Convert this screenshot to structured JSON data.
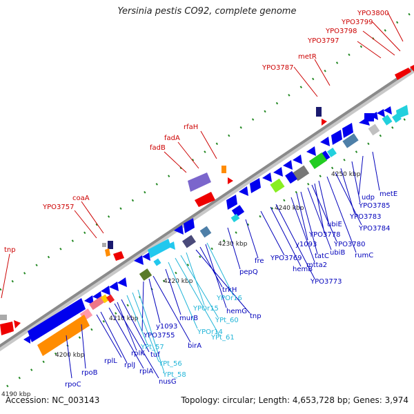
{
  "title": "Yersinia pestis CO92, complete genome",
  "footer": {
    "accession": "Accession: NC_003143",
    "summary": "Topology: circular; Length: 4,653,728 bp; Genes: 3,974"
  },
  "colors": {
    "backbone": "#8a8a8a",
    "red_label": "#cc0000",
    "blue_label": "#0000bb",
    "cyan_label": "#22b5d8",
    "tick": "#228822"
  },
  "kbp_labels": [
    "4190 kbp",
    "4200 kbp",
    "4210 kbp",
    "4220 kbp",
    "4230 kbp",
    "4240 kbp",
    "4250 kbp"
  ],
  "labels_top": [
    "YPO3800",
    "YPO3799",
    "YPO3798",
    "YPO3797",
    "metR",
    "YPO3787",
    "rfaH",
    "fadA",
    "fadB",
    "coaA",
    "YPO3757",
    "tnp"
  ],
  "labels_bottom_blue": [
    "metE",
    "udp",
    "YPO3785",
    "YPO3783",
    "YPO3784",
    "rumC",
    "ubiE",
    "YPO3778",
    "YPO3780",
    "ubiB",
    "y1093",
    "tatC",
    "mtta2",
    "YPO3769",
    "fre",
    "hemB",
    "YPO3773",
    "pepQ",
    "trkH",
    "hemG",
    "tnp",
    "y1093",
    "YPO3755",
    "murB",
    "birA",
    "tuf",
    "rplK",
    "rplA",
    "nusG",
    "rplL",
    "rplJ",
    "rpoB",
    "rpoC"
  ],
  "labels_bottom_cyan": [
    "YPOr16",
    "YPOr15",
    "YPt_60",
    "YPOr14",
    "YPt_61",
    "YPt_57",
    "YPt_56",
    "YPt_58"
  ]
}
